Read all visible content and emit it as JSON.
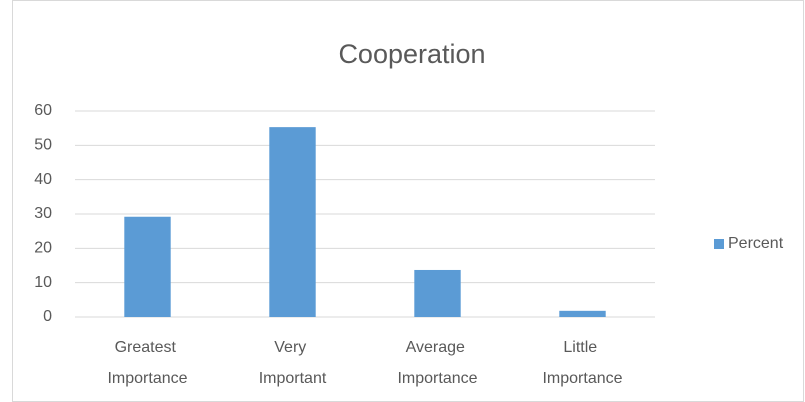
{
  "chart_data": {
    "type": "bar",
    "title": "Cooperation",
    "categories": [
      "Greatest Importance",
      "Very Important",
      "Average Importance",
      "Little Importance"
    ],
    "series": [
      {
        "name": "Percent",
        "color": "#5b9bd5",
        "values": [
          29.2,
          55.3,
          13.7,
          1.8
        ]
      }
    ],
    "ylim": [
      0,
      60
    ],
    "yticks": [
      0,
      10,
      20,
      30,
      40,
      50,
      60
    ],
    "grid": true,
    "legend": "right"
  }
}
